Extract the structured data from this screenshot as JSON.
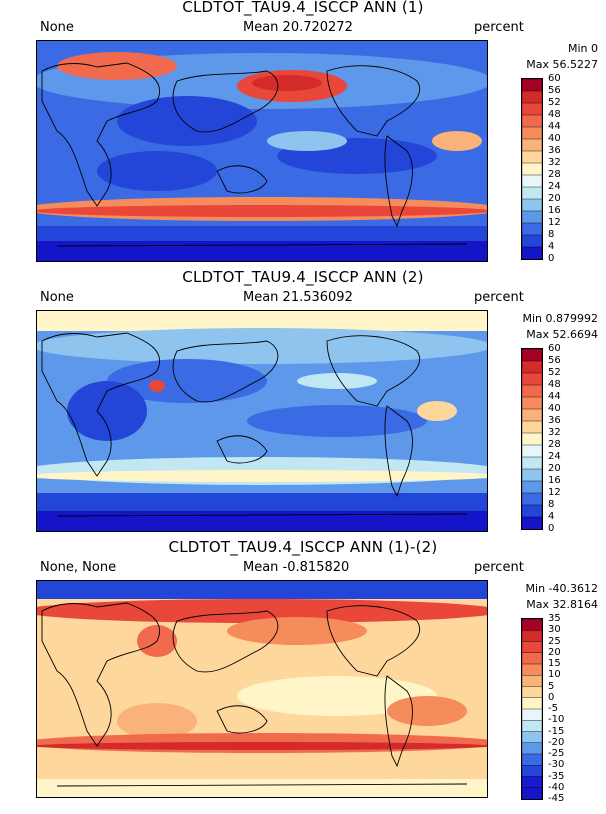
{
  "panels": [
    {
      "title": "CLDTOT_TAU9.4_ISCCP ANN (1)",
      "left_label": "None",
      "mean_text": "Mean 20.720272",
      "units": "percent",
      "min_text": "Min 0",
      "max_text": "Max 56.5227",
      "colorbar": {
        "ticks": [
          "60",
          "56",
          "52",
          "48",
          "44",
          "40",
          "36",
          "32",
          "28",
          "24",
          "20",
          "16",
          "12",
          "8",
          "4",
          "0"
        ],
        "colors": [
          "#a50026",
          "#d42a2a",
          "#e8473a",
          "#f26a4e",
          "#f68c5c",
          "#f9b279",
          "#fdd79b",
          "#fff5c8",
          "#e6f6f9",
          "#c1e7f3",
          "#8ec4ee",
          "#5e98ea",
          "#3a6be4",
          "#2346d8",
          "#1414c8"
        ]
      }
    },
    {
      "title": "CLDTOT_TAU9.4_ISCCP ANN (2)",
      "left_label": "None",
      "mean_text": "Mean 21.536092",
      "units": "percent",
      "min_text": "Min 0.879992",
      "max_text": "Max 52.6694",
      "colorbar": {
        "ticks": [
          "60",
          "56",
          "52",
          "48",
          "44",
          "40",
          "36",
          "32",
          "28",
          "24",
          "20",
          "16",
          "12",
          "8",
          "4",
          "0"
        ],
        "colors": [
          "#a50026",
          "#d42a2a",
          "#e8473a",
          "#f26a4e",
          "#f68c5c",
          "#f9b279",
          "#fdd79b",
          "#fff5c8",
          "#e6f6f9",
          "#c1e7f3",
          "#8ec4ee",
          "#5e98ea",
          "#3a6be4",
          "#2346d8",
          "#1414c8"
        ]
      }
    },
    {
      "title": "CLDTOT_TAU9.4_ISCCP ANN (1)-(2)",
      "left_label": "None, None",
      "mean_text": "Mean -0.815820",
      "units": "percent",
      "min_text": "Min -40.3612",
      "max_text": "Max 32.8164",
      "colorbar": {
        "ticks": [
          "35",
          "30",
          "25",
          "20",
          "15",
          "10",
          "5",
          "0",
          "-5",
          "-10",
          "-15",
          "-20",
          "-25",
          "-30",
          "-35",
          "-40",
          "-45"
        ],
        "colors": [
          "#a50026",
          "#d42a2a",
          "#e8473a",
          "#f26a4e",
          "#f68c5c",
          "#f9b279",
          "#fdd79b",
          "#fff5c8",
          "#e6f6f9",
          "#c1e7f3",
          "#8ec4ee",
          "#5e98ea",
          "#3a6be4",
          "#2346d8",
          "#1a1ad0",
          "#1414c8"
        ]
      }
    }
  ]
}
